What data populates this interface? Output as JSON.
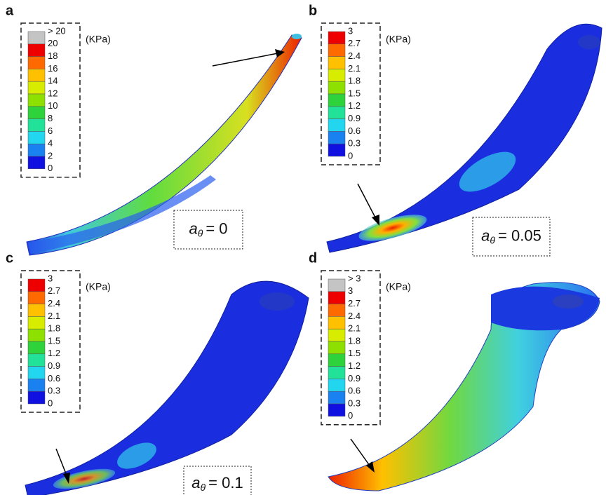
{
  "panels": [
    {
      "label": "a",
      "unit": "(KPa)",
      "legend": {
        "labels": [
          "> 20",
          20,
          18,
          16,
          14,
          12,
          10,
          8,
          6,
          4,
          2,
          0
        ],
        "colors": [
          "#c4c4c4",
          "#ee0000",
          "#ff6a00",
          "#ffc000",
          "#d8ec00",
          "#8ee000",
          "#2ed23a",
          "#22e29a",
          "#22d6f0",
          "#1a82f0",
          "#1010e0"
        ]
      },
      "annotation": {
        "symbol": "a",
        "subscript": "θ",
        "text": "= 0"
      }
    },
    {
      "label": "b",
      "unit": "(KPa)",
      "legend": {
        "labels": [
          3,
          2.7,
          2.4,
          2.1,
          1.8,
          1.5,
          1.2,
          0.9,
          0.6,
          0.3,
          0
        ],
        "colors": [
          "#ee0000",
          "#ff6a00",
          "#ffc000",
          "#d8ec00",
          "#8ee000",
          "#2ed23a",
          "#22e29a",
          "#22d6f0",
          "#1a82f0",
          "#1010e0"
        ]
      },
      "annotation": {
        "symbol": "a",
        "subscript": "θ",
        "text": "= 0.05"
      }
    },
    {
      "label": "c",
      "unit": "(KPa)",
      "legend": {
        "labels": [
          3,
          2.7,
          2.4,
          2.1,
          1.8,
          1.5,
          1.2,
          0.9,
          0.6,
          0.3,
          0
        ],
        "colors": [
          "#ee0000",
          "#ff6a00",
          "#ffc000",
          "#d8ec00",
          "#8ee000",
          "#2ed23a",
          "#22e29a",
          "#22d6f0",
          "#1a82f0",
          "#1010e0"
        ]
      },
      "annotation": {
        "symbol": "a",
        "subscript": "θ",
        "text": "= 0.1"
      }
    },
    {
      "label": "d",
      "unit": "(KPa)",
      "legend": {
        "labels": [
          "> 3",
          3,
          2.7,
          2.4,
          2.1,
          1.8,
          1.5,
          1.2,
          0.9,
          0.6,
          0.3,
          0
        ],
        "colors": [
          "#c4c4c4",
          "#ee0000",
          "#ff6a00",
          "#ffc000",
          "#d8ec00",
          "#8ee000",
          "#2ed23a",
          "#22e29a",
          "#22d6f0",
          "#1a82f0",
          "#1010e0"
        ]
      }
    }
  ]
}
